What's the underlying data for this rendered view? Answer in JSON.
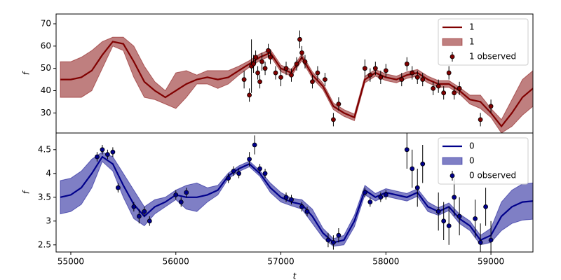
{
  "chart_data": [
    {
      "type": "line",
      "ylabel": "f",
      "xlim": [
        54860,
        59400
      ],
      "ylim": [
        21,
        74.4
      ],
      "yticks": [
        30,
        40,
        50,
        60,
        70
      ],
      "x": [
        54900,
        55000,
        55100,
        55200,
        55300,
        55400,
        55500,
        55600,
        55700,
        55800,
        55900,
        56000,
        56100,
        56200,
        56300,
        56400,
        56500,
        56600,
        56700,
        56800,
        56900,
        57000,
        57100,
        57200,
        57300,
        57400,
        57500,
        57600,
        57700,
        57800,
        57900,
        58000,
        58100,
        58200,
        58300,
        58400,
        58500,
        58600,
        58700,
        58800,
        58900,
        59000,
        59100,
        59200,
        59300,
        59400
      ],
      "series": [
        {
          "name": "1",
          "kind": "line",
          "color": "#800000",
          "values": [
            45,
            45,
            46,
            49,
            56,
            62,
            61,
            53,
            44,
            40,
            37,
            40,
            43,
            45,
            46,
            45,
            46,
            49,
            52,
            55,
            57,
            50,
            48,
            55,
            47,
            42,
            33,
            30,
            28,
            45,
            48,
            46,
            45,
            47,
            48,
            45,
            43,
            43,
            40,
            36,
            35,
            30,
            24,
            30,
            37,
            41
          ]
        },
        {
          "name": "1",
          "kind": "band",
          "color": "#800000",
          "upper": [
            53,
            53,
            55,
            58,
            62,
            64,
            64,
            60,
            51,
            44,
            40,
            48,
            49,
            47,
            49,
            49,
            49,
            51,
            53.5,
            56.5,
            58.5,
            51.5,
            49.5,
            56.5,
            48.5,
            43.5,
            34.5,
            31.5,
            29.5,
            46.5,
            49.5,
            47.5,
            46.5,
            48.5,
            49.5,
            46.5,
            44.5,
            44.5,
            41.5,
            38,
            38,
            32,
            27,
            36,
            45,
            49
          ],
          "lower": [
            37,
            37,
            37,
            40,
            50,
            60,
            58,
            46,
            37,
            36,
            34,
            32,
            37,
            43,
            43,
            41,
            43,
            47,
            50.5,
            53.5,
            55.5,
            48.5,
            46.5,
            53.5,
            45.5,
            40.5,
            31.5,
            28.5,
            26.5,
            43.5,
            46.5,
            44.5,
            43.5,
            45.5,
            46.5,
            43.5,
            41.5,
            41.5,
            38.5,
            34,
            32,
            28,
            21,
            24,
            29,
            33
          ]
        },
        {
          "name": "1 observed",
          "kind": "points",
          "color": "#800000",
          "x": [
            56650,
            56700,
            56720,
            56740,
            56760,
            56780,
            56800,
            56820,
            56850,
            56880,
            56900,
            56950,
            57000,
            57050,
            57100,
            57150,
            57180,
            57200,
            57230,
            57300,
            57350,
            57420,
            57500,
            57550,
            57800,
            57850,
            57900,
            57950,
            58000,
            58150,
            58200,
            58250,
            58300,
            58350,
            58450,
            58500,
            58550,
            58600,
            58650,
            58700,
            58900,
            59000
          ],
          "values": [
            45,
            38,
            51,
            52,
            55,
            48,
            44,
            53,
            50,
            58,
            55,
            48,
            46,
            50,
            47,
            52,
            63,
            57,
            53,
            44,
            48,
            45,
            27,
            34,
            50,
            47,
            50,
            46,
            49,
            45,
            52,
            48,
            46,
            45,
            41,
            42,
            39,
            48,
            39,
            41,
            27,
            33
          ],
          "errors": [
            4,
            3,
            12,
            4,
            3,
            3,
            3,
            4,
            3,
            3,
            3,
            3,
            4,
            3,
            3,
            3,
            4,
            3,
            3,
            3,
            3,
            3,
            3,
            3,
            4,
            3,
            3,
            3,
            3,
            3,
            3,
            3,
            3,
            3,
            3,
            3,
            3,
            3,
            3,
            3,
            3,
            3
          ]
        }
      ]
    },
    {
      "type": "line",
      "ylabel": "f",
      "xlabel": "t",
      "xlim": [
        54860,
        59400
      ],
      "ylim": [
        2.35,
        4.85
      ],
      "xticks": [
        55000,
        56000,
        57000,
        58000,
        59000
      ],
      "yticks": [
        2.5,
        3.0,
        3.5,
        4.0,
        4.5
      ],
      "x": [
        54900,
        55000,
        55100,
        55200,
        55300,
        55400,
        55500,
        55600,
        55700,
        55800,
        55900,
        56000,
        56100,
        56200,
        56300,
        56400,
        56500,
        56600,
        56700,
        56800,
        56900,
        57000,
        57100,
        57200,
        57300,
        57400,
        57500,
        57600,
        57700,
        57800,
        57900,
        58000,
        58100,
        58200,
        58300,
        58400,
        58500,
        58600,
        58700,
        58800,
        58900,
        59000,
        59100,
        59200,
        59300,
        59400
      ],
      "series": [
        {
          "name": "0",
          "kind": "line",
          "color": "#00008b",
          "values": [
            3.5,
            3.55,
            3.7,
            4.0,
            4.35,
            4.2,
            3.75,
            3.35,
            3.1,
            3.3,
            3.4,
            3.55,
            3.5,
            3.5,
            3.55,
            3.65,
            3.95,
            4.1,
            4.2,
            4.0,
            3.7,
            3.5,
            3.4,
            3.35,
            3.1,
            2.75,
            2.55,
            2.6,
            3.0,
            3.65,
            3.5,
            3.6,
            3.55,
            3.5,
            3.6,
            3.3,
            3.2,
            3.3,
            3.05,
            2.9,
            2.6,
            2.7,
            3.1,
            3.3,
            3.4,
            3.42
          ]
        },
        {
          "name": "0",
          "kind": "band",
          "color": "#00008b",
          "upper": [
            3.85,
            3.9,
            4.05,
            4.3,
            4.45,
            4.35,
            4,
            3.65,
            3.3,
            3.45,
            3.5,
            3.65,
            3.75,
            3.8,
            3.7,
            3.75,
            4.01,
            4.16,
            4.26,
            4.06,
            3.8,
            3.6,
            3.48,
            3.45,
            3.25,
            2.85,
            2.63,
            2.7,
            3.12,
            3.75,
            3.58,
            3.68,
            3.63,
            3.58,
            3.68,
            3.4,
            3.28,
            3.38,
            3.15,
            3,
            2.7,
            2.85,
            3.4,
            3.65,
            3.78,
            3.8
          ],
          "lower": [
            3.15,
            3.2,
            3.35,
            3.7,
            4.25,
            4.05,
            3.5,
            3.05,
            2.9,
            3.15,
            3.3,
            3.45,
            3.25,
            3.2,
            3.4,
            3.55,
            3.89,
            4.04,
            4.14,
            3.94,
            3.6,
            3.4,
            3.32,
            3.25,
            2.95,
            2.65,
            2.47,
            2.5,
            2.88,
            3.55,
            3.42,
            3.52,
            3.47,
            3.42,
            3.52,
            3.2,
            3.12,
            3.22,
            2.95,
            2.8,
            2.5,
            2.55,
            2.8,
            2.95,
            3.02,
            3.04
          ]
        },
        {
          "name": "0 observed",
          "kind": "points",
          "color": "#00008b",
          "x": [
            55250,
            55300,
            55350,
            55400,
            55450,
            55600,
            55650,
            55700,
            55750,
            56000,
            56050,
            56100,
            56500,
            56550,
            56600,
            56700,
            56750,
            56800,
            56850,
            57050,
            57100,
            57200,
            57250,
            57450,
            57500,
            57550,
            57800,
            57850,
            57950,
            58000,
            58200,
            58250,
            58300,
            58350,
            58500,
            58550,
            58600,
            58650,
            58700,
            58850,
            58900,
            58950,
            59000
          ],
          "values": [
            4.35,
            4.5,
            4.4,
            4.45,
            3.7,
            3.3,
            3.1,
            3.2,
            3.0,
            3.55,
            3.4,
            3.6,
            3.9,
            4.05,
            4.0,
            4.3,
            4.6,
            4.1,
            4.0,
            3.5,
            3.45,
            3.3,
            3.2,
            2.6,
            2.55,
            2.7,
            3.6,
            3.4,
            3.5,
            3.55,
            4.5,
            4.1,
            3.7,
            4.2,
            3.2,
            3.0,
            2.9,
            3.5,
            3.1,
            3.05,
            2.55,
            3.3,
            2.6
          ],
          "errors": [
            0.1,
            0.1,
            0.1,
            0.1,
            0.1,
            0.1,
            0.15,
            0.1,
            0.1,
            0.1,
            0.1,
            0.1,
            0.1,
            0.1,
            0.1,
            0.15,
            0.2,
            0.1,
            0.1,
            0.1,
            0.1,
            0.1,
            0.1,
            0.15,
            0.15,
            0.15,
            0.1,
            0.1,
            0.1,
            0.1,
            0.4,
            0.4,
            0.4,
            0.4,
            0.4,
            0.4,
            0.4,
            0.4,
            0.4,
            0.4,
            0.4,
            0.4,
            0.4
          ]
        }
      ]
    }
  ]
}
